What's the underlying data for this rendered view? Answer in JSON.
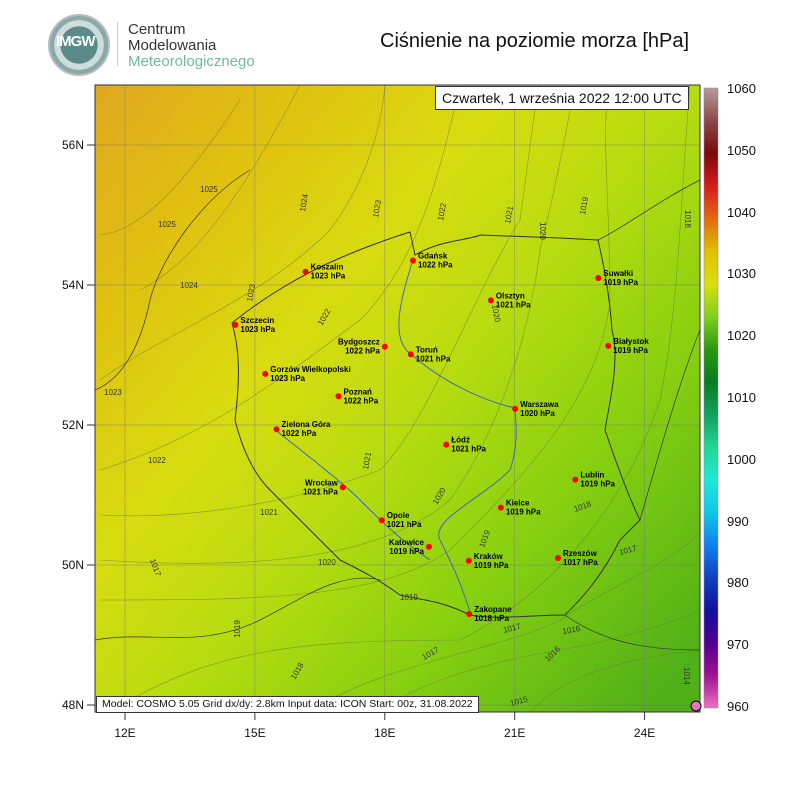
{
  "header": {
    "logo_text": "IMGW",
    "org_line1": "Centrum",
    "org_line2": "Modelowania",
    "org_line3": "Meteorologicznego",
    "title": "Ciśnienie na poziomie morza [hPa]"
  },
  "map": {
    "date_label": "Czwartek, 1 września 2022 12:00 UTC",
    "info_label": "Model: COSMO 5.05  Grid dx/dy: 2.8km  Input data: ICON  Start: 00z, 31.08.2022",
    "lon_ticks": [
      "12E",
      "15E",
      "18E",
      "21E",
      "24E"
    ],
    "lat_ticks": [
      "56N",
      "54N",
      "52N",
      "50N",
      "48N"
    ],
    "cities": [
      {
        "name": "Gdańsk",
        "value": "1022 hPa",
        "lat": 54.35,
        "lon": 18.65
      },
      {
        "name": "Koszalin",
        "value": "1023 hPa",
        "lat": 54.19,
        "lon": 16.17
      },
      {
        "name": "Szczecin",
        "value": "1023 hPa",
        "lat": 53.43,
        "lon": 14.55
      },
      {
        "name": "Olsztyn",
        "value": "1021 hPa",
        "lat": 53.78,
        "lon": 20.45
      },
      {
        "name": "Suwałki",
        "value": "1019 hPa",
        "lat": 54.1,
        "lon": 22.93
      },
      {
        "name": "Bydgoszcz",
        "value": "1022 hPa",
        "lat": 53.12,
        "lon": 18.0,
        "left": true
      },
      {
        "name": "Toruń",
        "value": "1021 hPa",
        "lat": 53.01,
        "lon": 18.6
      },
      {
        "name": "Białystok",
        "value": "1019 hPa",
        "lat": 53.13,
        "lon": 23.16
      },
      {
        "name": "Gorzów Wielkopolski",
        "value": "1023 hPa",
        "lat": 52.73,
        "lon": 15.24
      },
      {
        "name": "Poznań",
        "value": "1022 hPa",
        "lat": 52.41,
        "lon": 16.93
      },
      {
        "name": "Warszawa",
        "value": "1020 hPa",
        "lat": 52.23,
        "lon": 21.01
      },
      {
        "name": "Zielona Góra",
        "value": "1022 hPa",
        "lat": 51.94,
        "lon": 15.5
      },
      {
        "name": "Łódź",
        "value": "1021 hPa",
        "lat": 51.72,
        "lon": 19.42
      },
      {
        "name": "Wrocław",
        "value": "1021 hPa",
        "lat": 51.11,
        "lon": 17.03,
        "left": true
      },
      {
        "name": "Opole",
        "value": "1021 hPa",
        "lat": 50.64,
        "lon": 17.93
      },
      {
        "name": "Kielce",
        "value": "1019 hPa",
        "lat": 50.82,
        "lon": 20.68
      },
      {
        "name": "Lublin",
        "value": "1019 hPa",
        "lat": 51.22,
        "lon": 22.4
      },
      {
        "name": "Katowice",
        "value": "1019 hPa",
        "lat": 50.26,
        "lon": 19.02,
        "left": true
      },
      {
        "name": "Kraków",
        "value": "1019 hPa",
        "lat": 50.06,
        "lon": 19.94
      },
      {
        "name": "Rzeszów",
        "value": "1017 hPa",
        "lat": 50.1,
        "lon": 22.0
      },
      {
        "name": "Zakopane",
        "value": "1018 hPa",
        "lat": 49.3,
        "lon": 19.95
      }
    ],
    "isobar_labels": [
      "1025",
      "1025",
      "1024",
      "1024",
      "1023",
      "1023",
      "1023",
      "1022",
      "1022",
      "1022",
      "1021",
      "1021",
      "1021",
      "1020",
      "1020",
      "1020",
      "1020",
      "1019",
      "1019",
      "1019",
      "1019",
      "1018",
      "1018",
      "1018",
      "1017",
      "1017",
      "1017",
      "1016",
      "1016",
      "1015",
      "1014",
      "1017"
    ]
  },
  "colorbar": {
    "ticks": [
      "1060",
      "1050",
      "1040",
      "1030",
      "1020",
      "1010",
      "1000",
      "990",
      "980",
      "970",
      "960"
    ],
    "colors": [
      "#b89a9a",
      "#8a4a4a",
      "#7a0a0a",
      "#d81a1a",
      "#e06a10",
      "#e0c000",
      "#d8e010",
      "#80d020",
      "#2a9a10",
      "#0a7a20",
      "#10a060",
      "#20d890",
      "#20e8d8",
      "#10c8e8",
      "#1080f0",
      "#1040c0",
      "#1010a0",
      "#500090",
      "#a01090",
      "#f070c0"
    ],
    "unit": "hPa"
  },
  "colors": {
    "city_dot": "#ff0000",
    "border": "#333333",
    "river": "#3a5fbf",
    "isobar": "#556b2f"
  }
}
